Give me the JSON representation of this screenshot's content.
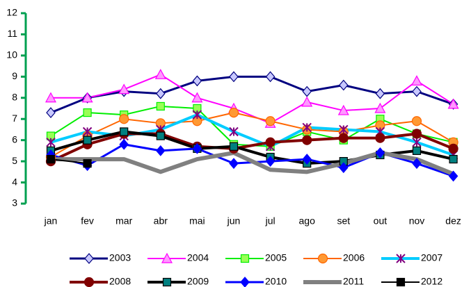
{
  "chart_data": {
    "type": "line",
    "categories": [
      "jan",
      "fev",
      "mar",
      "abr",
      "mai",
      "jun",
      "jul",
      "ago",
      "set",
      "out",
      "nov",
      "dez"
    ],
    "ylim": [
      3,
      12
    ],
    "yticks": [
      3,
      4,
      5,
      6,
      7,
      8,
      9,
      10,
      11,
      12
    ],
    "axis_color": "#00a050",
    "legend": "bottom",
    "series": [
      {
        "name": "2003",
        "color": "#000080",
        "marker": "diamond",
        "marker_fill": "#c8c8ff",
        "width": 3,
        "values": [
          7.3,
          8.0,
          8.3,
          8.2,
          8.8,
          9.0,
          9.0,
          8.3,
          8.6,
          8.2,
          8.3,
          7.7
        ]
      },
      {
        "name": "2004",
        "color": "#ff00ff",
        "marker": "triangle",
        "marker_fill": "#ff99ff",
        "width": 2,
        "values": [
          8.0,
          8.0,
          8.4,
          9.1,
          8.0,
          7.5,
          6.8,
          7.8,
          7.4,
          7.5,
          8.8,
          7.7
        ]
      },
      {
        "name": "2005",
        "color": "#00ee00",
        "marker": "square",
        "marker_fill": "#99ff55",
        "width": 2,
        "values": [
          6.2,
          7.3,
          7.2,
          7.6,
          7.5,
          5.8,
          5.7,
          6.4,
          6.0,
          7.0,
          6.3,
          5.9
        ]
      },
      {
        "name": "2006",
        "color": "#ff6600",
        "marker": "circle",
        "marker_fill": "#ff9933",
        "width": 2,
        "values": [
          5.2,
          6.2,
          7.0,
          6.8,
          6.9,
          7.3,
          6.9,
          6.5,
          6.4,
          6.7,
          6.9,
          5.9
        ]
      },
      {
        "name": "2007",
        "color": "#00ccff",
        "marker": "star",
        "marker_fill": "#800080",
        "width": 4,
        "values": [
          5.9,
          6.4,
          6.2,
          6.5,
          7.2,
          6.4,
          5.7,
          6.6,
          6.5,
          6.4,
          5.9,
          5.3
        ]
      },
      {
        "name": "2008",
        "color": "#800000",
        "marker": "circle",
        "marker_fill": "#800000",
        "width": 4,
        "values": [
          5.0,
          5.8,
          6.3,
          6.3,
          5.7,
          5.6,
          5.9,
          6.0,
          6.1,
          6.1,
          6.3,
          5.6
        ]
      },
      {
        "name": "2009",
        "color": "#000000",
        "marker": "square",
        "marker_fill": "#008080",
        "width": 4,
        "values": [
          5.5,
          6.0,
          6.4,
          6.2,
          5.6,
          5.7,
          5.2,
          4.9,
          5.0,
          5.3,
          5.5,
          5.1
        ]
      },
      {
        "name": "2010",
        "color": "#0000ff",
        "marker": "diamond",
        "marker_fill": "#0000ff",
        "width": 3,
        "values": [
          5.3,
          4.8,
          5.8,
          5.5,
          5.6,
          4.9,
          5.0,
          5.1,
          4.7,
          5.4,
          4.9,
          4.3
        ]
      },
      {
        "name": "2011",
        "color": "#808080",
        "marker": "none",
        "marker_fill": "#808080",
        "width": 6,
        "values": [
          5.1,
          5.1,
          5.1,
          4.5,
          5.1,
          5.4,
          4.6,
          4.5,
          4.9,
          5.4,
          5.1,
          4.4
        ]
      },
      {
        "name": "2012",
        "color": "#000000",
        "marker": "square",
        "marker_fill": "#000000",
        "width": 2,
        "values": [
          5.1,
          4.9,
          null,
          null,
          null,
          null,
          null,
          null,
          null,
          null,
          null,
          null
        ]
      }
    ]
  }
}
